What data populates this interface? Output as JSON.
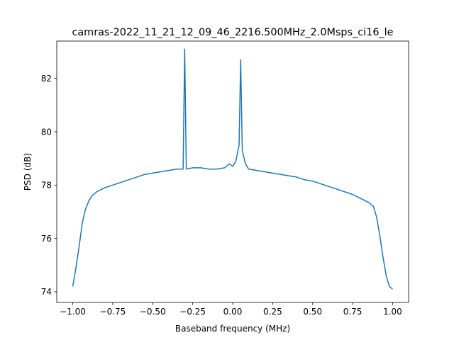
{
  "chart_data": {
    "type": "line",
    "title": "camras-2022_11_21_12_09_46_2216.500MHz_2.0Msps_ci16_le",
    "xlabel": "Baseband frequency (MHz)",
    "ylabel": "PSD (dB)",
    "xlim": [
      -1.1,
      1.1
    ],
    "ylim": [
      73.6,
      83.4
    ],
    "xticks": [
      -1.0,
      -0.75,
      -0.5,
      -0.25,
      0.0,
      0.25,
      0.5,
      0.75,
      1.0
    ],
    "xtick_labels": [
      "−1.00",
      "−0.75",
      "−0.50",
      "−0.25",
      "0.00",
      "0.25",
      "0.50",
      "0.75",
      "1.00"
    ],
    "yticks": [
      74,
      76,
      78,
      80,
      82
    ],
    "ytick_labels": [
      "74",
      "76",
      "78",
      "80",
      "82"
    ],
    "grid": false,
    "legend": "none",
    "color": "#1f77b4",
    "series": [
      {
        "x": [
          -1.0,
          -0.98,
          -0.96,
          -0.94,
          -0.92,
          -0.9,
          -0.88,
          -0.85,
          -0.8,
          -0.75,
          -0.7,
          -0.65,
          -0.6,
          -0.55,
          -0.5,
          -0.45,
          -0.4,
          -0.35,
          -0.31,
          -0.3,
          -0.29,
          -0.25,
          -0.2,
          -0.15,
          -0.1,
          -0.05,
          -0.02,
          0.0,
          0.02,
          0.04,
          0.05,
          0.06,
          0.08,
          0.1,
          0.15,
          0.2,
          0.25,
          0.3,
          0.35,
          0.4,
          0.45,
          0.5,
          0.55,
          0.6,
          0.65,
          0.7,
          0.75,
          0.8,
          0.85,
          0.88,
          0.9,
          0.92,
          0.94,
          0.96,
          0.98,
          1.0
        ],
        "y": [
          74.2,
          74.9,
          75.7,
          76.6,
          77.1,
          77.4,
          77.6,
          77.75,
          77.9,
          78.0,
          78.1,
          78.2,
          78.3,
          78.4,
          78.45,
          78.5,
          78.55,
          78.6,
          78.6,
          83.1,
          78.6,
          78.65,
          78.65,
          78.6,
          78.6,
          78.65,
          78.8,
          78.7,
          78.9,
          79.5,
          82.7,
          79.3,
          78.8,
          78.6,
          78.55,
          78.5,
          78.45,
          78.4,
          78.35,
          78.3,
          78.2,
          78.15,
          78.05,
          77.95,
          77.85,
          77.75,
          77.65,
          77.5,
          77.35,
          77.2,
          76.8,
          76.1,
          75.3,
          74.6,
          74.2,
          74.1
        ]
      }
    ]
  }
}
